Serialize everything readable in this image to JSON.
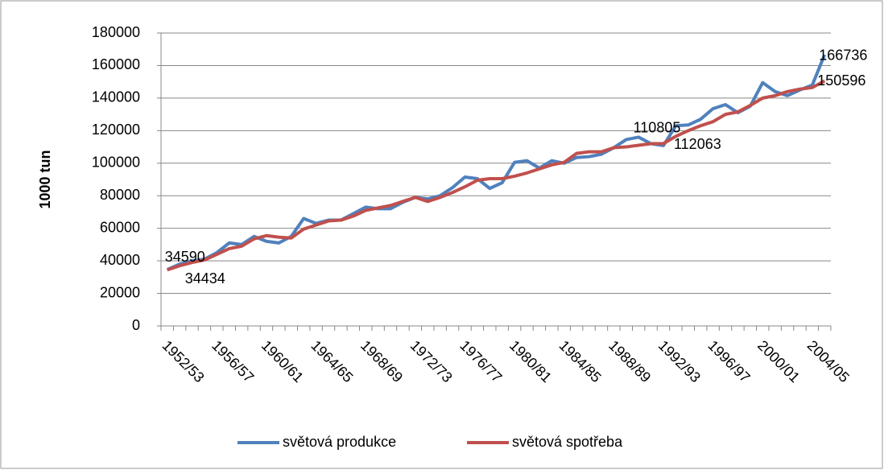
{
  "chart_data": {
    "type": "line",
    "y_label": "1000 tun",
    "categories": [
      "1952/53",
      null,
      null,
      null,
      "1956/57",
      null,
      null,
      null,
      "1960/61",
      null,
      null,
      null,
      "1964/65",
      null,
      null,
      null,
      "1968/69",
      null,
      null,
      null,
      "1972/73",
      null,
      null,
      null,
      "1976/77",
      null,
      null,
      null,
      "1980/81",
      null,
      null,
      null,
      "1984/85",
      null,
      null,
      null,
      "1988/89",
      null,
      null,
      null,
      "1992/93",
      null,
      null,
      null,
      "1996/97",
      null,
      null,
      null,
      "2000/01",
      null,
      null,
      null,
      "2004/05",
      null
    ],
    "series": [
      {
        "name": "světová produkce",
        "color": "#4f81bd",
        "values": [
          34590,
          38000,
          40000,
          41000,
          45000,
          51000,
          50000,
          55000,
          52000,
          51000,
          55000,
          66000,
          63000,
          65000,
          65000,
          69000,
          73000,
          72000,
          72000,
          76000,
          79000,
          78000,
          80000,
          85000,
          91500,
          90500,
          84500,
          88000,
          100500,
          101500,
          97000,
          101500,
          100000,
          103500,
          104000,
          105500,
          109500,
          114500,
          116000,
          112000,
          110805,
          123000,
          123500,
          127000,
          133500,
          136000,
          131000,
          135000,
          149500,
          144000,
          141500,
          145000,
          148000,
          166736
        ],
        "value_labels": [
          "34590",
          null,
          null,
          null,
          null,
          null,
          null,
          null,
          null,
          null,
          null,
          null,
          null,
          null,
          null,
          null,
          null,
          null,
          null,
          null,
          null,
          null,
          null,
          null,
          null,
          null,
          null,
          null,
          null,
          null,
          null,
          null,
          null,
          null,
          null,
          null,
          null,
          null,
          null,
          null,
          "110805",
          null,
          null,
          null,
          null,
          null,
          null,
          null,
          null,
          null,
          null,
          null,
          null,
          "166736"
        ]
      },
      {
        "name": "světová spotřeba",
        "color": "#c0504d",
        "values": [
          34434,
          37000,
          39000,
          40500,
          44000,
          47500,
          49000,
          53500,
          55500,
          54500,
          54000,
          59500,
          62000,
          64500,
          65000,
          67500,
          71000,
          72500,
          74000,
          76500,
          79000,
          76500,
          79000,
          82000,
          85500,
          89500,
          90500,
          90500,
          92000,
          94000,
          96500,
          99000,
          100500,
          106000,
          107000,
          107000,
          109500,
          110000,
          111000,
          112000,
          112063,
          116500,
          120000,
          123000,
          125500,
          130000,
          131500,
          135500,
          140000,
          141500,
          144000,
          145500,
          146500,
          150596
        ],
        "value_labels": [
          "34434",
          null,
          null,
          null,
          null,
          null,
          null,
          null,
          null,
          null,
          null,
          null,
          null,
          null,
          null,
          null,
          null,
          null,
          null,
          null,
          null,
          null,
          null,
          null,
          null,
          null,
          null,
          null,
          null,
          null,
          null,
          null,
          null,
          null,
          null,
          null,
          null,
          null,
          null,
          null,
          "112063",
          null,
          null,
          null,
          null,
          null,
          null,
          null,
          null,
          null,
          null,
          null,
          null,
          "150596"
        ]
      }
    ],
    "ylim": [
      0,
      180000
    ],
    "yticks": [
      0,
      20000,
      40000,
      60000,
      80000,
      100000,
      120000,
      140000,
      160000,
      180000
    ],
    "grid": true,
    "legend": "bottom"
  }
}
